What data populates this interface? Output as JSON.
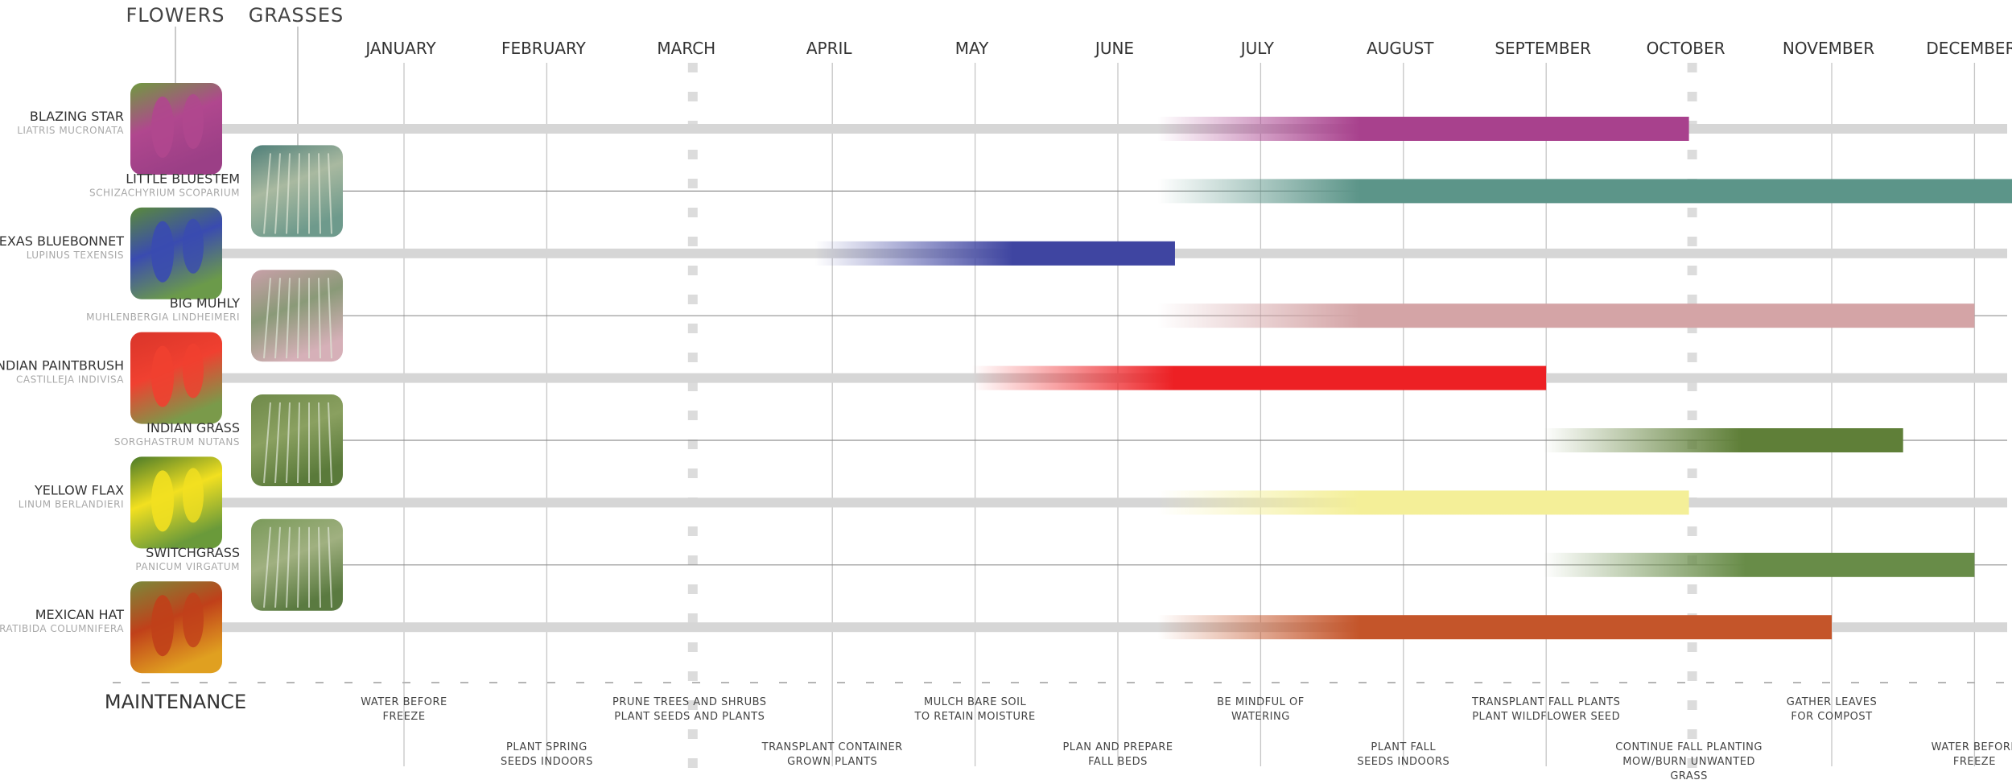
{
  "headers": {
    "flowers": "FLOWERS",
    "grasses": "GRASSES",
    "maintenance": "MAINTENANCE"
  },
  "chart_data": {
    "type": "bar",
    "months": [
      "JANUARY",
      "FEBRUARY",
      "MARCH",
      "APRIL",
      "MAY",
      "JUNE",
      "JULY",
      "AUGUST",
      "SEPTEMBER",
      "OCTOBER",
      "NOVEMBER",
      "DECEMBER"
    ],
    "plants": [
      {
        "name": "BLAZING STAR",
        "latin": "LIATRIS MUCRONATA",
        "group": "flower",
        "start": 5.3,
        "end": 9.0,
        "color": "#a8418d",
        "photo": [
          "#6f9a3f",
          "#b0478e",
          "#9b3f86"
        ]
      },
      {
        "name": "LITTLE BLUESTEM",
        "latin": "SCHIZACHYRIUM SCOPARIUM",
        "group": "grass",
        "start": 5.3,
        "end": 12.0,
        "color": "#5c9589",
        "photo": [
          "#4f7f79",
          "#a9b9a0",
          "#6e9a8c"
        ]
      },
      {
        "name": "TEXAS BLUEBONNET",
        "latin": "LUPINUS TEXENSIS",
        "group": "flower",
        "start": 2.9,
        "end": 5.4,
        "color": "#3f45a1",
        "photo": [
          "#5a8a3a",
          "#3a4bb0",
          "#6b9a4a"
        ]
      },
      {
        "name": "BIG MUHLY",
        "latin": "MUHLENBERGIA LINDHEIMERI",
        "group": "grass",
        "start": 5.3,
        "end": 11.0,
        "color": "#d4a4a6",
        "photo": [
          "#c8a0a8",
          "#8a9a78",
          "#d6b0b8"
        ]
      },
      {
        "name": "INDIAN PAINTBRUSH",
        "latin": "CASTILLEJA INDIVISA",
        "group": "flower",
        "start": 4.0,
        "end": 8.0,
        "color": "#ed2024",
        "photo": [
          "#d9352a",
          "#f04030",
          "#7a9a4a"
        ]
      },
      {
        "name": "INDIAN GRASS",
        "latin": "SORGHASTRUM NUTANS",
        "group": "grass",
        "start": 8.0,
        "end": 10.5,
        "color": "#5f7f38",
        "photo": [
          "#6f8a4a",
          "#8aa060",
          "#5a7a3a"
        ]
      },
      {
        "name": "YELLOW FLAX",
        "latin": "LINUM BERLANDIERI",
        "group": "flower",
        "start": 5.3,
        "end": 9.0,
        "color": "#f4ef98",
        "photo": [
          "#4a7a2a",
          "#f2e020",
          "#6a9a3a"
        ]
      },
      {
        "name": "SWITCHGRASS",
        "latin": "PANICUM VIRGATUM",
        "group": "grass",
        "start": 8.0,
        "end": 11.0,
        "color": "#688c48",
        "photo": [
          "#7a9a5a",
          "#a0b080",
          "#5a7a40"
        ]
      },
      {
        "name": "MEXICAN HAT",
        "latin": "RATIBIDA COLUMNIFERA",
        "group": "flower",
        "start": 5.3,
        "end": 10.0,
        "color": "#c4552a",
        "photo": [
          "#7a8a3a",
          "#c0401a",
          "#e0a020"
        ]
      }
    ],
    "maintenance": [
      {
        "at": 0.0,
        "row": "upper",
        "lines": [
          "WATER BEFORE",
          "FREEZE"
        ]
      },
      {
        "at": 1.0,
        "row": "lower",
        "lines": [
          "PLANT SPRING",
          "SEEDS INDOORS"
        ]
      },
      {
        "at": 2.0,
        "row": "upper",
        "lines": [
          "PRUNE TREES AND SHRUBS",
          "PLANT SEEDS AND PLANTS"
        ]
      },
      {
        "at": 3.0,
        "row": "lower",
        "lines": [
          "TRANSPLANT CONTAINER",
          "GROWN PLANTS"
        ]
      },
      {
        "at": 4.0,
        "row": "upper",
        "lines": [
          "MULCH BARE SOIL",
          "TO RETAIN MOISTURE"
        ]
      },
      {
        "at": 5.0,
        "row": "lower",
        "lines": [
          "PLAN AND PREPARE",
          "FALL BEDS"
        ]
      },
      {
        "at": 6.0,
        "row": "upper",
        "lines": [
          "BE MINDFUL OF",
          "WATERING"
        ]
      },
      {
        "at": 7.0,
        "row": "lower",
        "lines": [
          "PLANT FALL",
          "SEEDS INDOORS"
        ]
      },
      {
        "at": 8.0,
        "row": "upper",
        "lines": [
          "TRANSPLANT FALL PLANTS",
          "PLANT WILDFLOWER SEED"
        ]
      },
      {
        "at": 9.0,
        "row": "lower",
        "lines": [
          "CONTINUE FALL PLANTING",
          "MOW/BURN UNWANTED",
          "GRASS"
        ]
      },
      {
        "at": 10.0,
        "row": "upper",
        "lines": [
          "GATHER LEAVES",
          "FOR COMPOST"
        ]
      },
      {
        "at": 11.0,
        "row": "lower",
        "lines": [
          "WATER BEFORE",
          "FREEZE"
        ]
      }
    ],
    "dashed_months": [
      "MARCH",
      "OCTOBER"
    ]
  }
}
